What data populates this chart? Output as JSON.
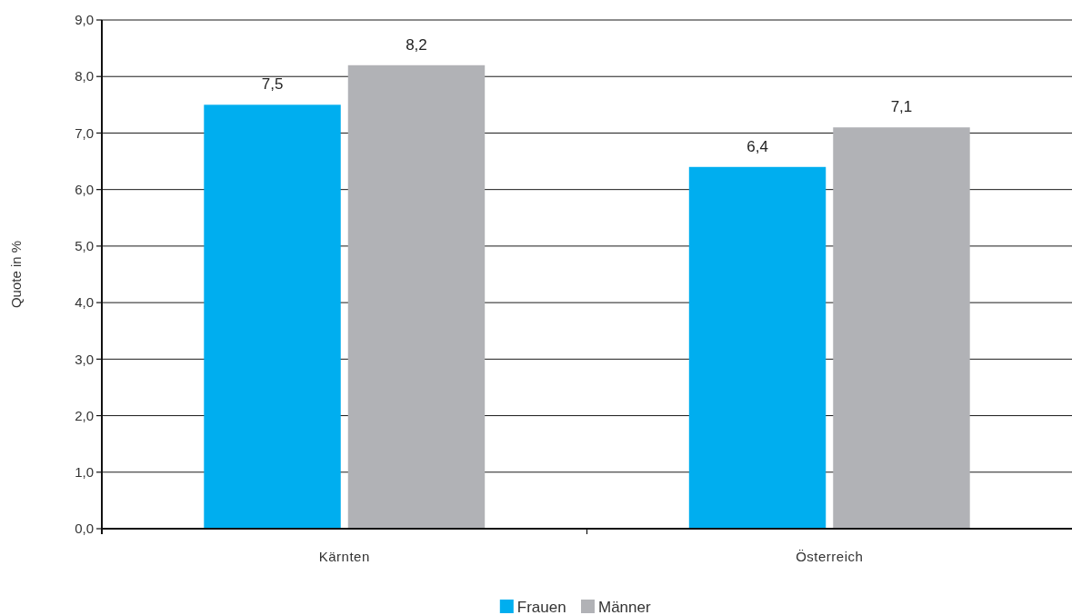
{
  "chart_data": {
    "type": "bar",
    "ylabel": "Quote in %",
    "categories": [
      "Kärnten",
      "Österreich"
    ],
    "series": [
      {
        "name": "Frauen",
        "color": "#00aeef",
        "values": [
          7.5,
          6.4
        ],
        "value_labels": [
          "7,5",
          "6,4"
        ]
      },
      {
        "name": "Männer",
        "color": "#b1b2b6",
        "values": [
          8.2,
          7.1
        ],
        "value_labels": [
          "8,2",
          "7,1"
        ]
      }
    ],
    "ylim": [
      0,
      9
    ],
    "yticks": [
      {
        "value": 0,
        "label": "0,0"
      },
      {
        "value": 1,
        "label": "1,0"
      },
      {
        "value": 2,
        "label": "2,0"
      },
      {
        "value": 3,
        "label": "3,0"
      },
      {
        "value": 4,
        "label": "4,0"
      },
      {
        "value": 5,
        "label": "5,0"
      },
      {
        "value": 6,
        "label": "6,0"
      },
      {
        "value": 7,
        "label": "7,0"
      },
      {
        "value": 8,
        "label": "8,0"
      },
      {
        "value": 9,
        "label": "9,0"
      }
    ],
    "grid": "y",
    "legend": "bottom"
  }
}
